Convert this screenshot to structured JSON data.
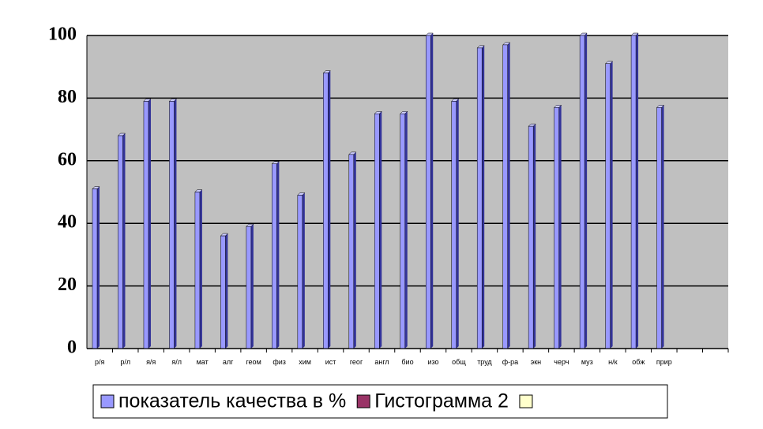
{
  "chart_data": {
    "type": "bar",
    "categories": [
      "р/я",
      "р/л",
      "я/я",
      "я/л",
      "мат",
      "алг",
      "геом",
      "физ",
      "хим",
      "ист",
      "геог",
      "англ",
      "био",
      "изо",
      "общ",
      "труд",
      "ф-ра",
      "экн",
      "черч",
      "муз",
      "н/к",
      "обж",
      "прир",
      null,
      null
    ],
    "series": [
      {
        "name": "показатель качества в %",
        "color": "#9999ff",
        "values": [
          51,
          68,
          79,
          79,
          50,
          36,
          39,
          59,
          49,
          88,
          62,
          75,
          75,
          100,
          79,
          96,
          97,
          71,
          77,
          100,
          91,
          100,
          77,
          null,
          null
        ]
      }
    ],
    "legend": [
      {
        "name": "показатель качества в %",
        "color": "#9999ff"
      },
      {
        "name": "Гистограмма 2",
        "color": "#993366"
      },
      {
        "color": "#ffffcc"
      }
    ],
    "ylim": [
      0,
      100
    ],
    "yticks": [
      0,
      20,
      40,
      60,
      80,
      100
    ],
    "grid": true
  }
}
